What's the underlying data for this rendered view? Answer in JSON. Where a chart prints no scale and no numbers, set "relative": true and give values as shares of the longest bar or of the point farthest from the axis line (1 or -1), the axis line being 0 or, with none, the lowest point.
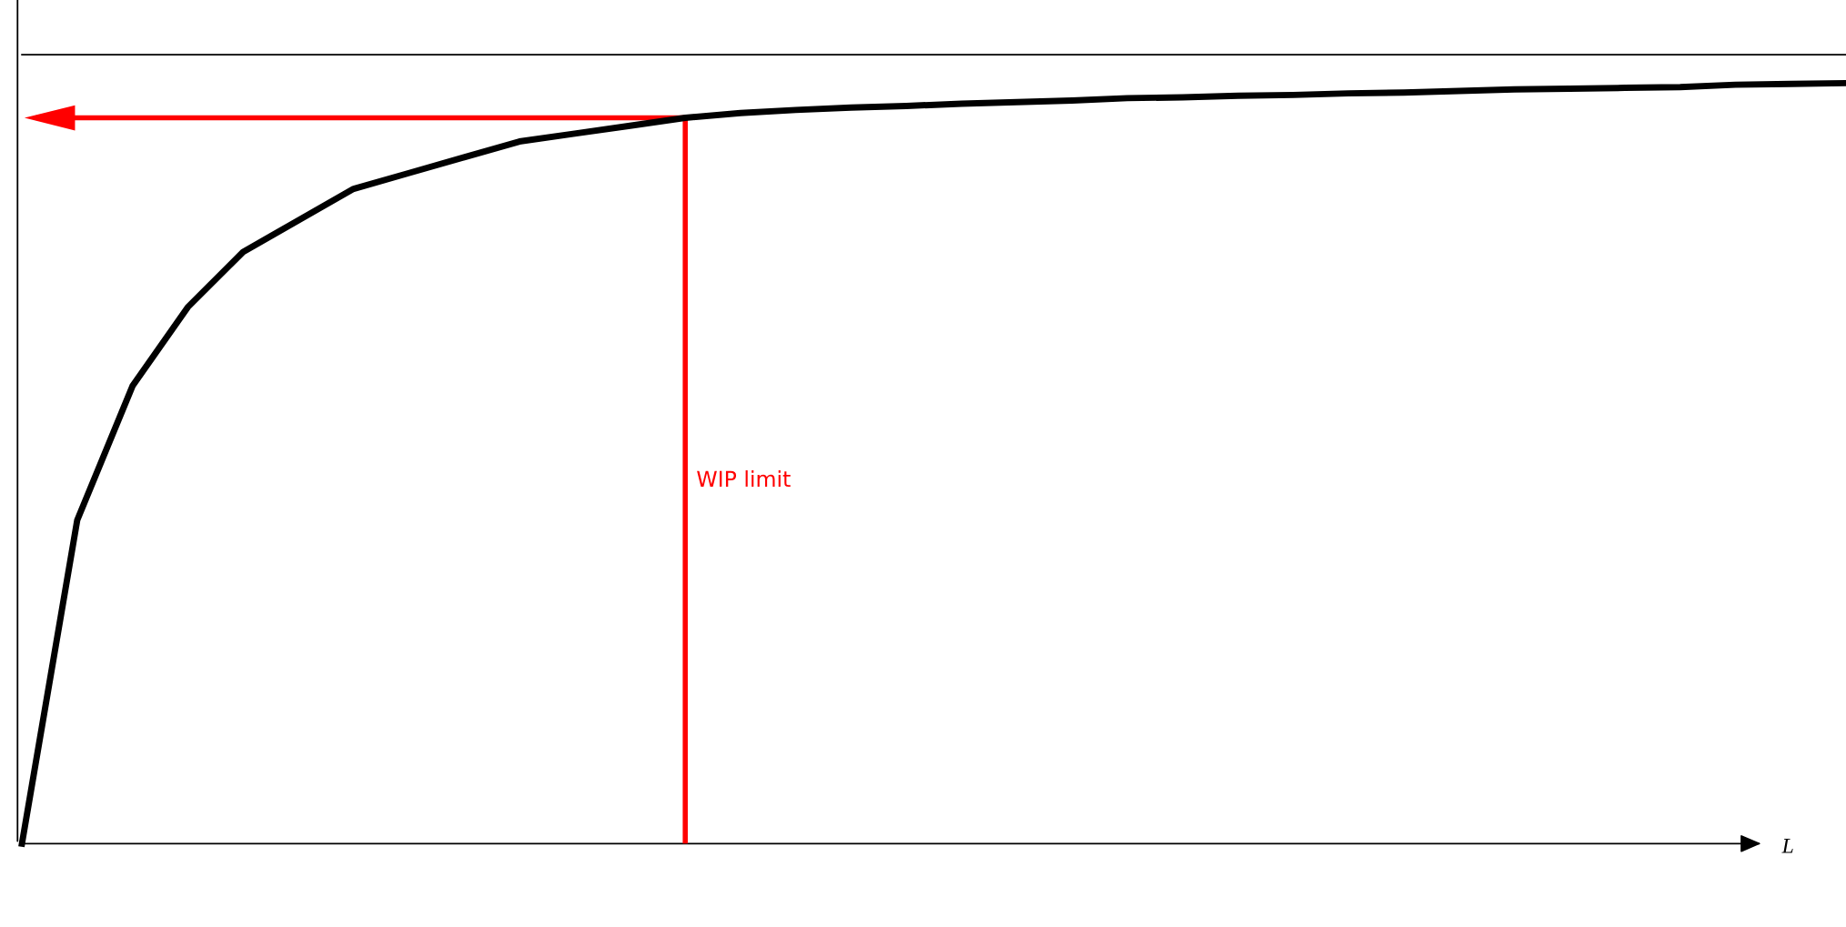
{
  "chart_data": {
    "type": "line",
    "relative": true,
    "xlabel": "L",
    "categories": [
      null,
      null,
      null,
      null,
      null,
      null,
      null,
      null,
      null,
      null,
      null,
      null,
      null,
      null,
      null,
      null,
      null,
      null,
      null,
      null,
      null,
      null,
      null,
      null,
      null,
      null,
      null,
      null,
      null,
      null,
      null,
      null,
      null,
      null
    ],
    "series": [
      {
        "color": "#000000",
        "values": [
          0,
          0.41,
          0.58,
          0.68,
          0.75,
          0.79,
          0.83,
          0.85,
          0.87,
          0.89,
          0.9,
          0.91,
          0.92,
          0.926,
          0.93,
          0.933,
          0.935,
          0.938,
          0.94,
          0.942,
          0.945,
          0.946,
          0.948,
          0.949,
          0.951,
          0.952,
          0.954,
          0.956,
          0.957,
          0.958,
          0.959,
          0.962,
          0.963,
          0.964
        ]
      },
      {
        "color": "#000000",
        "values": [
          1,
          1,
          1,
          1,
          1,
          1,
          1,
          1,
          1,
          1,
          1,
          1,
          1,
          1,
          1,
          1,
          1,
          1,
          1,
          1,
          1,
          1,
          1,
          1,
          1,
          1,
          1,
          1,
          1,
          1,
          1,
          1,
          1,
          1
        ]
      }
    ],
    "ref_lines": [
      {
        "axis": "y",
        "value": 0.92,
        "color": "#ff0000"
      }
    ],
    "annotations": [
      "WIP limit"
    ],
    "grid": false,
    "legend": false
  }
}
